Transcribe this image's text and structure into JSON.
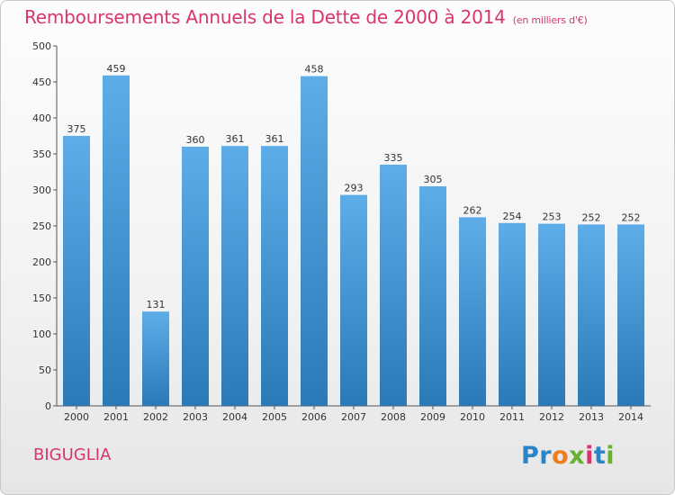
{
  "title": "Remboursements Annuels de la Dette de 2000 à 2014",
  "unit": "(en milliers d'€)",
  "location": "BIGUGLIA",
  "brand": "Proxiti",
  "colors": {
    "bar_light": "#5dade9",
    "bar_dark": "#2a7ab8",
    "accent": "#d9346e"
  },
  "chart_data": {
    "type": "bar",
    "title": "Remboursements Annuels de la Dette de 2000 à 2014",
    "xlabel": "",
    "ylabel": "",
    "categories": [
      "2000",
      "2001",
      "2002",
      "2003",
      "2004",
      "2005",
      "2006",
      "2007",
      "2008",
      "2009",
      "2010",
      "2011",
      "2012",
      "2013",
      "2014"
    ],
    "values": [
      375,
      459,
      131,
      360,
      361,
      361,
      458,
      293,
      335,
      305,
      262,
      254,
      253,
      252,
      252
    ],
    "ylim": [
      0,
      500
    ],
    "yticks": [
      0,
      50,
      100,
      150,
      200,
      250,
      300,
      350,
      400,
      450,
      500
    ],
    "grid": false,
    "legend": "none"
  }
}
